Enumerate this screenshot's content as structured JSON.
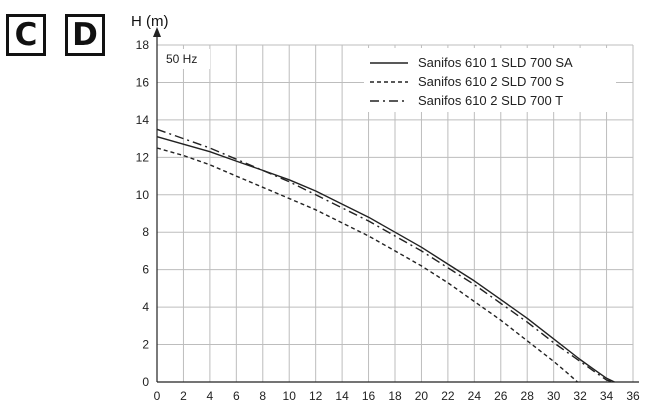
{
  "badges": [
    "C",
    "D"
  ],
  "chart_data": {
    "type": "line",
    "title": "",
    "ylabel": "H (m)",
    "xlabel": "",
    "annotation": "50 Hz",
    "xlim": [
      0,
      36
    ],
    "ylim": [
      0,
      18
    ],
    "xticks": [
      0,
      2,
      4,
      6,
      8,
      10,
      12,
      14,
      16,
      18,
      20,
      22,
      24,
      26,
      28,
      30,
      32,
      34,
      36
    ],
    "yticks": [
      0,
      2,
      4,
      6,
      8,
      10,
      12,
      14,
      16,
      18
    ],
    "grid": true,
    "legend_position": "top-right",
    "series": [
      {
        "name": "Sanifos 610 1 SLD 700 SA",
        "style": "solid",
        "color": "#222222",
        "x": [
          0,
          2,
          4,
          6,
          8,
          10,
          12,
          14,
          16,
          18,
          20,
          22,
          24,
          26,
          28,
          30,
          32,
          33,
          34,
          34.6
        ],
        "y": [
          13.1,
          12.7,
          12.3,
          11.8,
          11.3,
          10.8,
          10.2,
          9.5,
          8.8,
          8.0,
          7.2,
          6.3,
          5.4,
          4.4,
          3.4,
          2.3,
          1.2,
          0.7,
          0.2,
          0
        ]
      },
      {
        "name": "Sanifos 610 2 SLD 700 S",
        "style": "dashed",
        "color": "#222222",
        "x": [
          0,
          2,
          4,
          6,
          8,
          10,
          12,
          14,
          16,
          18,
          20,
          22,
          24,
          26,
          28,
          30,
          31,
          31.8
        ],
        "y": [
          12.5,
          12.1,
          11.6,
          11.0,
          10.4,
          9.8,
          9.2,
          8.5,
          7.8,
          7.0,
          6.2,
          5.3,
          4.3,
          3.3,
          2.2,
          1.1,
          0.5,
          0
        ]
      },
      {
        "name": "Sanifos 610 2 SLD 700 T",
        "style": "dashdot",
        "color": "#222222",
        "x": [
          0,
          2,
          4,
          6,
          8,
          10,
          12,
          14,
          16,
          18,
          20,
          22,
          24,
          26,
          28,
          30,
          32,
          33,
          34,
          34.5
        ],
        "y": [
          13.5,
          13.0,
          12.5,
          11.9,
          11.3,
          10.7,
          10.0,
          9.3,
          8.6,
          7.8,
          7.0,
          6.1,
          5.2,
          4.2,
          3.2,
          2.1,
          1.1,
          0.6,
          0.1,
          0
        ]
      }
    ]
  }
}
